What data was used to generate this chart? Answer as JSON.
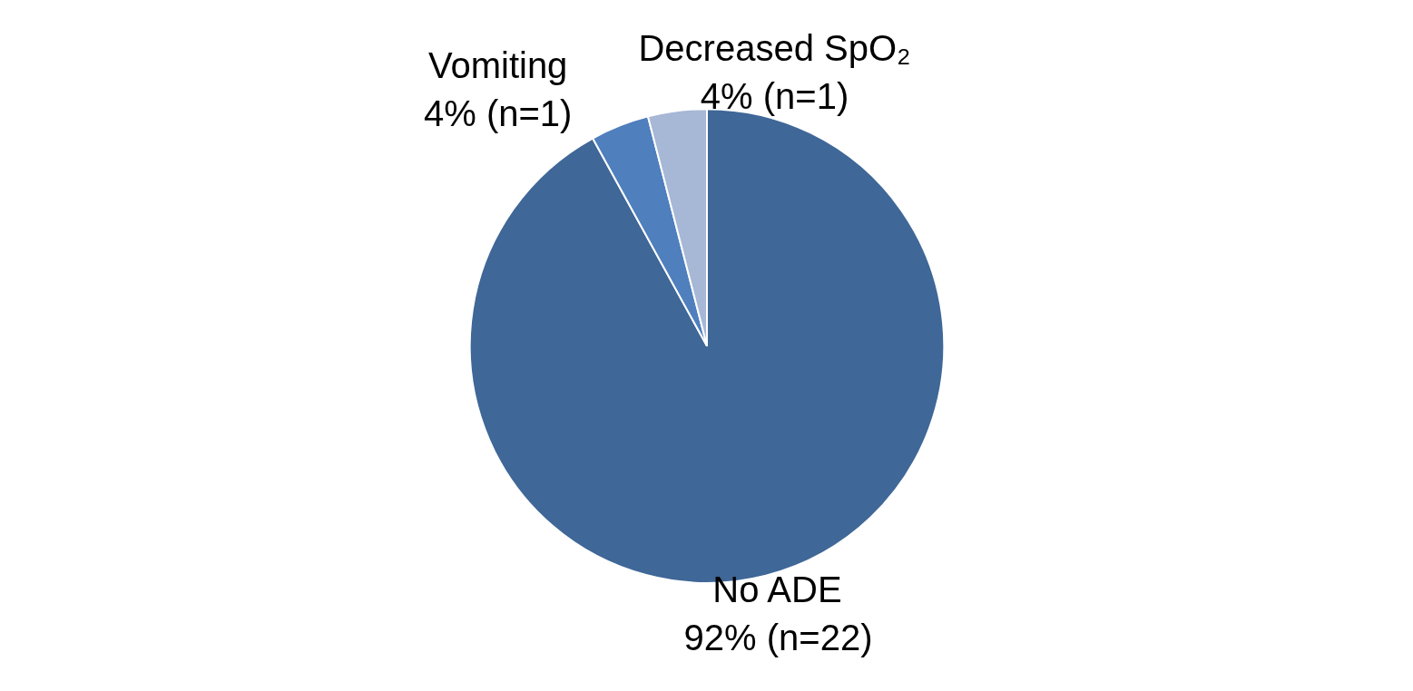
{
  "chart_data": {
    "type": "pie",
    "categories": [
      "No ADE",
      "Vomiting",
      "Decreased SpO₂"
    ],
    "values": [
      92,
      4,
      4
    ],
    "value_labels": [
      "92% (n=22)",
      "4% (n=1)",
      "4% (n=1)"
    ],
    "colors": [
      "#3f6797",
      "#4f7fbd",
      "#a7b7d6"
    ]
  }
}
